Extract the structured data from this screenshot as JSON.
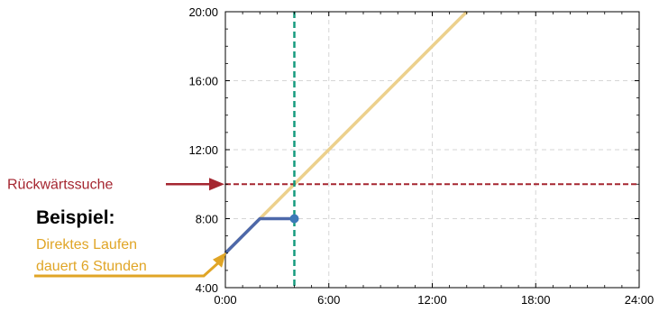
{
  "chart_data": {
    "type": "line",
    "x_label_unit": "hours",
    "xlim": [
      0,
      24
    ],
    "ylim": [
      4,
      20
    ],
    "x_ticks": [
      0,
      6,
      12,
      18,
      24
    ],
    "x_tick_labels": [
      "0:00",
      "6:00",
      "12:00",
      "18:00",
      "24:00"
    ],
    "y_ticks": [
      4,
      8,
      12,
      16,
      20
    ],
    "y_tick_labels": [
      "4:00",
      "8:00",
      "12:00",
      "16:00",
      "20:00"
    ],
    "grid": true,
    "series": [
      {
        "role": "diagonal",
        "color": "#ecd08c",
        "points": [
          [
            0,
            6
          ],
          [
            14,
            20
          ]
        ]
      },
      {
        "role": "path",
        "color": "#4d68aa",
        "points": [
          [
            0,
            6
          ],
          [
            2,
            8
          ],
          [
            4,
            8
          ]
        ]
      }
    ],
    "marker": {
      "x": 4,
      "y": 8,
      "color": "#3d79b8"
    },
    "vline": {
      "x": 4,
      "color": "#169b7f"
    },
    "hline": {
      "y": 10,
      "color": "#a52630"
    }
  },
  "annotations": {
    "backward_search": {
      "text": "Rückwärtssuche",
      "color": "#a52630"
    },
    "example_title": {
      "text": "Beispiel:",
      "color": "#000000"
    },
    "example_line1": {
      "text": "Direktes Laufen",
      "color": "#e0a526"
    },
    "example_line2": {
      "text": "dauert 6 Stunden",
      "color": "#e0a526"
    }
  }
}
